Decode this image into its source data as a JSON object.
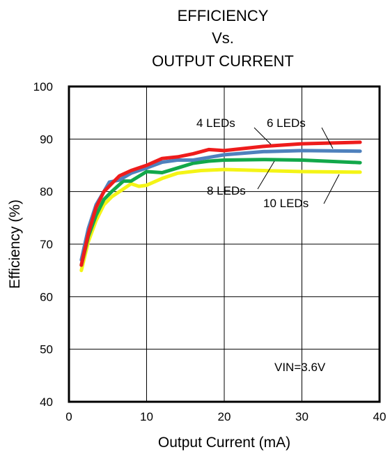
{
  "chart_data": {
    "type": "line",
    "title_lines": [
      "EFFICIENCY",
      "Vs.",
      "OUTPUT CURRENT"
    ],
    "xlabel": "Output Current (mA)",
    "ylabel": "Efficiency (%)",
    "xlim": [
      0,
      40
    ],
    "ylim": [
      40,
      100
    ],
    "x_ticks": [
      0,
      10,
      20,
      30,
      40
    ],
    "y_ticks": [
      40,
      50,
      60,
      70,
      80,
      90,
      100
    ],
    "grid": true,
    "series": [
      {
        "name": "4 LEDs",
        "color": "#ee1c1c",
        "points": [
          [
            1.6,
            66
          ],
          [
            2.5,
            72
          ],
          [
            3.5,
            77
          ],
          [
            4.5,
            80
          ],
          [
            5.5,
            81.5
          ],
          [
            6.5,
            83
          ],
          [
            8,
            84
          ],
          [
            10,
            85
          ],
          [
            12,
            86.3
          ],
          [
            14,
            86.6
          ],
          [
            16,
            87.2
          ],
          [
            18,
            88
          ],
          [
            20,
            87.8
          ],
          [
            25,
            88.6
          ],
          [
            30,
            89.1
          ],
          [
            37.5,
            89.4
          ]
        ]
      },
      {
        "name": "6 LEDs",
        "color": "#4f81bd",
        "points": [
          [
            1.6,
            67
          ],
          [
            2.5,
            73
          ],
          [
            3.5,
            77.5
          ],
          [
            4.5,
            80
          ],
          [
            5.2,
            81.8
          ],
          [
            6.5,
            82.2
          ],
          [
            8,
            83.5
          ],
          [
            10,
            84.5
          ],
          [
            12,
            85.6
          ],
          [
            14,
            86
          ],
          [
            16,
            86
          ],
          [
            18,
            86.5
          ],
          [
            20,
            87
          ],
          [
            25,
            87.6
          ],
          [
            30,
            87.8
          ],
          [
            37.5,
            87.7
          ]
        ]
      },
      {
        "name": "8 LEDs",
        "color": "#12a84a",
        "points": [
          [
            1.6,
            66
          ],
          [
            2.5,
            71.5
          ],
          [
            3.5,
            75.5
          ],
          [
            4.5,
            78.5
          ],
          [
            5.5,
            80
          ],
          [
            7,
            82
          ],
          [
            8,
            82
          ],
          [
            10,
            83.8
          ],
          [
            12,
            83.6
          ],
          [
            14,
            84.5
          ],
          [
            16,
            85.4
          ],
          [
            18,
            85.8
          ],
          [
            20,
            86
          ],
          [
            25,
            86.1
          ],
          [
            30,
            86
          ],
          [
            37.5,
            85.5
          ]
        ]
      },
      {
        "name": "10 LEDs",
        "color": "#f4f416",
        "points": [
          [
            1.6,
            65
          ],
          [
            2.5,
            70.5
          ],
          [
            3.5,
            74.5
          ],
          [
            4.5,
            77.5
          ],
          [
            5.5,
            79
          ],
          [
            7,
            80.5
          ],
          [
            8,
            81.5
          ],
          [
            9,
            81
          ],
          [
            10,
            81.2
          ],
          [
            12,
            82.5
          ],
          [
            14,
            83.5
          ],
          [
            17,
            84
          ],
          [
            20,
            84.2
          ],
          [
            25,
            84
          ],
          [
            30,
            83.8
          ],
          [
            37.5,
            83.7
          ]
        ]
      }
    ],
    "annotations": [
      {
        "text": "4 LEDs"
      },
      {
        "text": "6 LEDs"
      },
      {
        "text": "8 LEDs"
      },
      {
        "text": "10 LEDs"
      },
      {
        "text": "VIN=3.6V"
      }
    ]
  }
}
